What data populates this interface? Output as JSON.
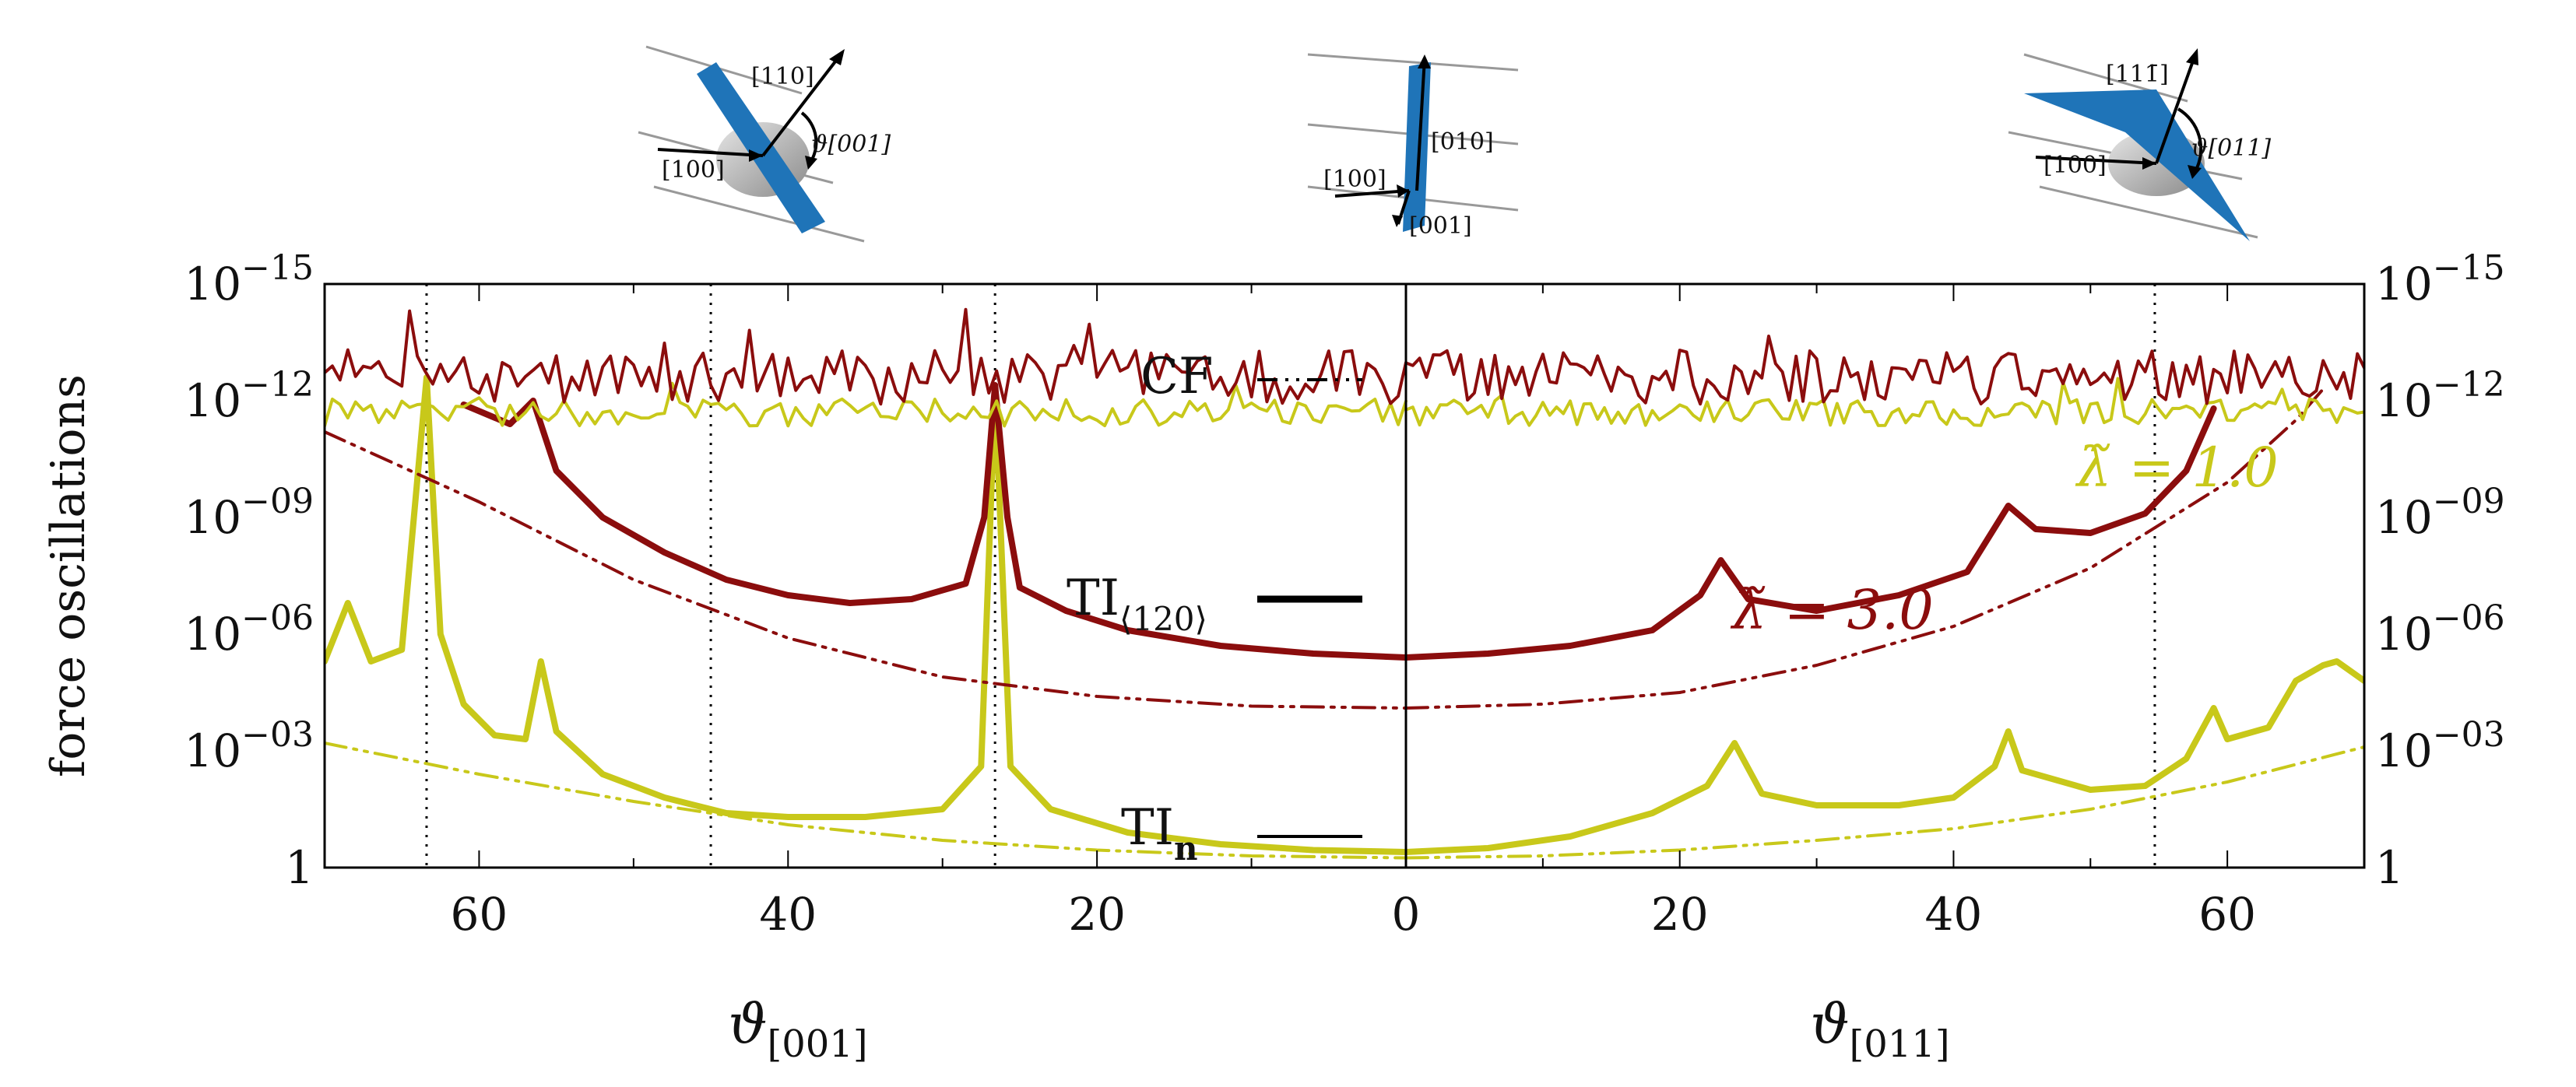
{
  "chart_data": {
    "type": "line",
    "ylabel": "force oscillations",
    "yscale": "log",
    "ylim_exp": [
      -15,
      0
    ],
    "yticks": [
      {
        "exp": 0,
        "label": "1"
      },
      {
        "exp": -3,
        "label": "10",
        "sup": "−03"
      },
      {
        "exp": -6,
        "label": "10",
        "sup": "−06"
      },
      {
        "exp": -9,
        "label": "10",
        "sup": "−09"
      },
      {
        "exp": -12,
        "label": "10",
        "sup": "−12"
      },
      {
        "exp": -15,
        "label": "10",
        "sup": "−15"
      }
    ],
    "panels": [
      {
        "id": "left",
        "xlabel": "ϑ",
        "xlabel_sub": "[001]",
        "xlim": [
          70,
          0
        ],
        "xticks": [
          60,
          40,
          20,
          0
        ],
        "vlines": [
          63.4,
          45,
          26.6
        ]
      },
      {
        "id": "right",
        "xlabel": "ϑ",
        "xlabel_sub": "[011]",
        "xlim": [
          0,
          70
        ],
        "xticks": [
          0,
          20,
          40,
          60
        ],
        "vlines": [
          54.7
        ]
      }
    ],
    "series": [
      {
        "name": "CF λ=1.0",
        "color": "#c8c81a",
        "style": "dashdotdot",
        "width": 4,
        "left": [
          [
            70,
            -3.2
          ],
          [
            60,
            -2.4
          ],
          [
            50,
            -1.7
          ],
          [
            40,
            -1.1
          ],
          [
            30,
            -0.7
          ],
          [
            20,
            -0.45
          ],
          [
            10,
            -0.3
          ],
          [
            0,
            -0.25
          ]
        ],
        "right": [
          [
            0,
            -0.25
          ],
          [
            10,
            -0.3
          ],
          [
            20,
            -0.45
          ],
          [
            30,
            -0.7
          ],
          [
            40,
            -1.0
          ],
          [
            50,
            -1.5
          ],
          [
            60,
            -2.2
          ],
          [
            70,
            -3.1
          ]
        ]
      },
      {
        "name": "TI⟨120⟩ λ=1.0",
        "color": "#c8c81a",
        "style": "solid",
        "width": 8,
        "left": [
          [
            70,
            -5.3
          ],
          [
            68.5,
            -6.8
          ],
          [
            67,
            -5.3
          ],
          [
            65,
            -5.6
          ],
          [
            63.4,
            -12.6
          ],
          [
            62.5,
            -6
          ],
          [
            61,
            -4.2
          ],
          [
            59,
            -3.4
          ],
          [
            57,
            -3.3
          ],
          [
            56,
            -5.3
          ],
          [
            55,
            -3.5
          ],
          [
            52,
            -2.4
          ],
          [
            48,
            -1.8
          ],
          [
            44,
            -1.4
          ],
          [
            40,
            -1.3
          ],
          [
            35,
            -1.3
          ],
          [
            30,
            -1.5
          ],
          [
            27.5,
            -2.6
          ],
          [
            26.6,
            -12.2
          ],
          [
            25.6,
            -2.6
          ],
          [
            23,
            -1.5
          ],
          [
            18,
            -0.9
          ],
          [
            12,
            -0.6
          ],
          [
            6,
            -0.45
          ],
          [
            0,
            -0.4
          ]
        ],
        "right": [
          [
            0,
            -0.4
          ],
          [
            6,
            -0.5
          ],
          [
            12,
            -0.8
          ],
          [
            18,
            -1.4
          ],
          [
            22,
            -2.1
          ],
          [
            24,
            -3.2
          ],
          [
            26,
            -1.9
          ],
          [
            30,
            -1.6
          ],
          [
            36,
            -1.6
          ],
          [
            40,
            -1.8
          ],
          [
            43,
            -2.6
          ],
          [
            44,
            -3.5
          ],
          [
            45,
            -2.5
          ],
          [
            50,
            -2.0
          ],
          [
            54,
            -2.1
          ],
          [
            57,
            -2.8
          ],
          [
            59,
            -4.1
          ],
          [
            60,
            -3.3
          ],
          [
            63,
            -3.6
          ],
          [
            65,
            -4.8
          ],
          [
            67,
            -5.2
          ],
          [
            68,
            -5.3
          ],
          [
            70,
            -4.8
          ]
        ]
      },
      {
        "name": "CF λ=3.0",
        "color": "#8b0d0d",
        "style": "dashdotdot",
        "width": 4,
        "left": [
          [
            70,
            -11.2
          ],
          [
            60,
            -9.4
          ],
          [
            50,
            -7.4
          ],
          [
            40,
            -5.9
          ],
          [
            30,
            -4.9
          ],
          [
            20,
            -4.4
          ],
          [
            10,
            -4.15
          ],
          [
            0,
            -4.1
          ]
        ],
        "right": [
          [
            0,
            -4.1
          ],
          [
            10,
            -4.2
          ],
          [
            20,
            -4.5
          ],
          [
            30,
            -5.2
          ],
          [
            40,
            -6.2
          ],
          [
            50,
            -7.7
          ],
          [
            60,
            -9.9
          ],
          [
            65,
            -11.5
          ],
          [
            67,
            -12.3
          ]
        ]
      },
      {
        "name": "TI⟨120⟩ λ=3.0",
        "color": "#8b0d0d",
        "style": "solid",
        "width": 8,
        "left": [
          [
            61,
            -11.9
          ],
          [
            58,
            -11.4
          ],
          [
            56.5,
            -12
          ],
          [
            55,
            -10.2
          ],
          [
            52,
            -9
          ],
          [
            48,
            -8.1
          ],
          [
            44,
            -7.4
          ],
          [
            40,
            -7.0
          ],
          [
            36,
            -6.8
          ],
          [
            32,
            -6.9
          ],
          [
            28.5,
            -7.3
          ],
          [
            27.3,
            -9
          ],
          [
            26.6,
            -12.4
          ],
          [
            25.8,
            -9
          ],
          [
            25,
            -7.2
          ],
          [
            22,
            -6.6
          ],
          [
            18,
            -6.1
          ],
          [
            12,
            -5.7
          ],
          [
            6,
            -5.5
          ],
          [
            0,
            -5.4
          ]
        ],
        "right": [
          [
            0,
            -5.4
          ],
          [
            6,
            -5.5
          ],
          [
            12,
            -5.7
          ],
          [
            18,
            -6.1
          ],
          [
            21.5,
            -7
          ],
          [
            23,
            -7.9
          ],
          [
            25,
            -6.9
          ],
          [
            30,
            -6.6
          ],
          [
            36,
            -7.0
          ],
          [
            41,
            -7.6
          ],
          [
            44,
            -9.3
          ],
          [
            46,
            -8.7
          ],
          [
            50,
            -8.6
          ],
          [
            54,
            -9.1
          ],
          [
            57,
            -10.2
          ],
          [
            59,
            -11.8
          ]
        ]
      },
      {
        "name": "TIn λ=1.0",
        "color": "#c8c81a",
        "style": "noisy",
        "width": 4,
        "level": -11.7,
        "amp": 0.35,
        "seed": 11
      },
      {
        "name": "TIn λ=3.0",
        "color": "#8b0d0d",
        "style": "noisy",
        "width": 4,
        "level": -12.6,
        "amp": 0.7,
        "seed": 29
      }
    ],
    "legend": [
      {
        "label": "CF",
        "style": "dashdotdot"
      },
      {
        "label": "TI",
        "sub": "⟨120⟩",
        "style": "thick"
      },
      {
        "label": "TI",
        "sub": "n",
        "style": "thin"
      }
    ],
    "annotations": [
      {
        "text": "λ̃ = 1.0",
        "color": "#c8c81a"
      },
      {
        "text": "λ̃ = 3.0",
        "color": "#8b0d0d"
      }
    ]
  },
  "insets": [
    {
      "id": "inset-001",
      "labels": [
        "[110]",
        "[100]",
        "ϑ[001]"
      ]
    },
    {
      "id": "inset-center",
      "labels": [
        "[010]",
        "[100]",
        "[001]"
      ]
    },
    {
      "id": "inset-011",
      "labels": [
        "[111̄]",
        "[100]",
        "ϑ[011]"
      ]
    }
  ]
}
